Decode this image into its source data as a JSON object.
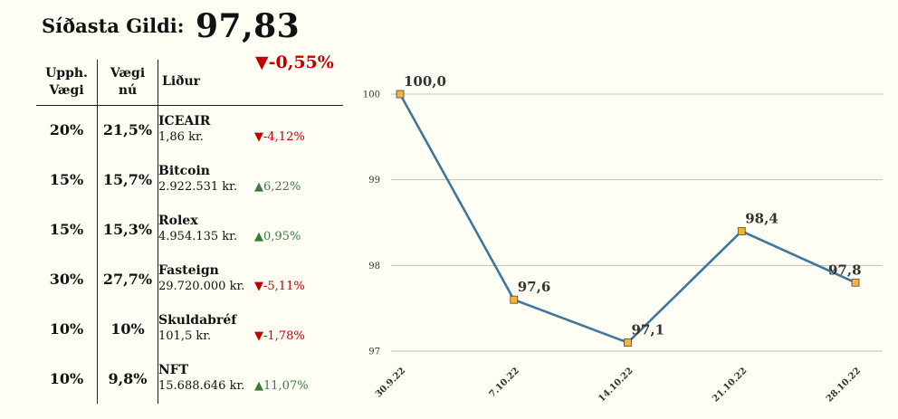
{
  "header": {
    "label": "Síðasta Gildi:",
    "value": "97,83",
    "change": "▼-0,55%"
  },
  "table": {
    "col1": "Upph. Vægi",
    "col2": "Vægi nú",
    "col3": "Liður",
    "rows": [
      {
        "w": "20%",
        "n": "21,5%",
        "name": "ICEAIR",
        "price": "1,86 kr.",
        "chg": "▼-4,12%",
        "dir": "neg"
      },
      {
        "w": "15%",
        "n": "15,7%",
        "name": "Bitcoin",
        "price": "2.922.531 kr.",
        "chg": "▲6,22%",
        "dir": "pos"
      },
      {
        "w": "15%",
        "n": "15,3%",
        "name": "Rolex",
        "price": "4.954.135 kr.",
        "chg": "▲0,95%",
        "dir": "pos"
      },
      {
        "w": "30%",
        "n": "27,7%",
        "name": "Fasteign",
        "price": "29.720.000 kr.",
        "chg": "▼-5,11%",
        "dir": "neg"
      },
      {
        "w": "10%",
        "n": "10%",
        "name": "Skuldabréf",
        "price": "101,5 kr.",
        "chg": "▼-1,78%",
        "dir": "neg"
      },
      {
        "w": "10%",
        "n": "9,8%",
        "name": "NFT",
        "price": "15.688.646 kr.",
        "chg": "▲11,07%",
        "dir": "pos"
      }
    ]
  },
  "colors": {
    "line": "#3f769b",
    "marker": "#f2b23d",
    "grid": "#bdbdbd",
    "negative": "#c00000",
    "positive": "#3c7a3c"
  },
  "chart_data": {
    "type": "line",
    "categories": [
      "30.9.22",
      "7.10.22",
      "14.10.22",
      "21.10.22",
      "28.10.22"
    ],
    "values": [
      100.0,
      97.6,
      97.1,
      98.4,
      97.8
    ],
    "data_labels": [
      "100,0",
      "97,6",
      "97,1",
      "98,4",
      "97,8"
    ],
    "yticks": [
      "97",
      "98",
      "99",
      "100"
    ],
    "ylim": [
      97,
      100
    ],
    "grid": true,
    "legend": "none"
  }
}
